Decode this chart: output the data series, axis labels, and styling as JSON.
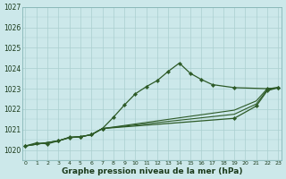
{
  "xlabel": "Graphe pression niveau de la mer (hPa)",
  "background_color": "#cce8ea",
  "grid_color": "#aacfcf",
  "line_color": "#2d5a27",
  "xlim": [
    0,
    23
  ],
  "ylim": [
    1019.5,
    1025.2
  ],
  "yticks": [
    1020,
    1021,
    1022,
    1023
  ],
  "ytick_extra": 1027,
  "xticks": [
    0,
    1,
    2,
    3,
    4,
    5,
    6,
    7,
    8,
    9,
    10,
    11,
    12,
    13,
    14,
    15,
    16,
    17,
    18,
    19,
    20,
    21,
    22,
    23
  ],
  "series0_x": [
    0,
    1,
    2,
    3,
    4,
    5,
    6,
    7,
    8,
    9,
    10,
    11,
    12,
    13,
    14,
    15,
    16,
    17,
    19,
    22,
    23
  ],
  "series0_y": [
    1020.2,
    1020.35,
    1020.3,
    1020.45,
    1020.6,
    1020.65,
    1020.75,
    1021.05,
    1021.6,
    1022.2,
    1022.75,
    1023.1,
    1023.4,
    1023.85,
    1024.25,
    1023.75,
    1023.45,
    1023.2,
    1023.05,
    1023.0,
    1023.05
  ],
  "series1_x": [
    0,
    3,
    4,
    5,
    6,
    7,
    19,
    21,
    22,
    23
  ],
  "series1_y": [
    1020.2,
    1020.45,
    1020.62,
    1020.65,
    1020.75,
    1021.05,
    1021.55,
    1022.15,
    1022.9,
    1023.05
  ],
  "series2_x": [
    0,
    3,
    4,
    5,
    6,
    7,
    19,
    21,
    22,
    23
  ],
  "series2_y": [
    1020.2,
    1020.45,
    1020.62,
    1020.65,
    1020.75,
    1021.05,
    1021.75,
    1022.25,
    1022.95,
    1023.05
  ],
  "series3_x": [
    0,
    3,
    4,
    5,
    6,
    7,
    19,
    21,
    22,
    23
  ],
  "series3_y": [
    1020.2,
    1020.45,
    1020.62,
    1020.65,
    1020.75,
    1021.05,
    1021.95,
    1022.4,
    1023.0,
    1023.05
  ]
}
